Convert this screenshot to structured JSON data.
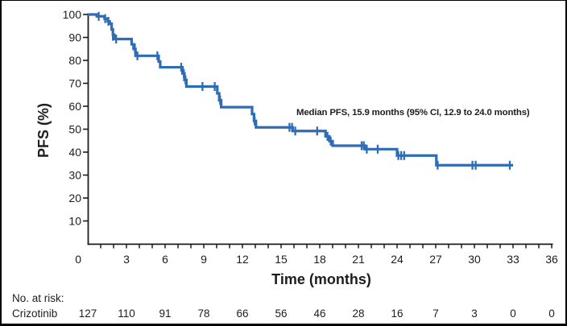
{
  "chart_data": {
    "type": "line",
    "chart_style": "kaplan-meier-step",
    "title": "",
    "annotation": "Median PFS, 15.9 months (95% CI, 12.9 to 24.0 months)",
    "xlabel": "Time (months)",
    "ylabel": "PFS (%)",
    "xlim": [
      0,
      36
    ],
    "ylim": [
      0,
      100
    ],
    "xticks": [
      0,
      3,
      6,
      9,
      12,
      15,
      18,
      21,
      24,
      27,
      30,
      33,
      36
    ],
    "xtick_minor_interval": 1,
    "yticks": [
      10,
      20,
      30,
      40,
      50,
      60,
      70,
      80,
      90,
      100
    ],
    "grid": false,
    "legend": false,
    "series": [
      {
        "name": "Crizotinib",
        "color": "#2e6cb5",
        "end_month": 33.0,
        "steps": [
          [
            0,
            100
          ],
          [
            0.7,
            99.2
          ],
          [
            1.3,
            98.2
          ],
          [
            1.55,
            97.0
          ],
          [
            1.7,
            96.0
          ],
          [
            1.85,
            93.5
          ],
          [
            1.95,
            91.2
          ],
          [
            2.05,
            89.3
          ],
          [
            3.4,
            87.0
          ],
          [
            3.55,
            85.0
          ],
          [
            3.7,
            82.0
          ],
          [
            5.5,
            79.5
          ],
          [
            5.62,
            77.0
          ],
          [
            7.35,
            74.3
          ],
          [
            7.5,
            71.5
          ],
          [
            7.65,
            68.6
          ],
          [
            10.05,
            65.6
          ],
          [
            10.2,
            62.6
          ],
          [
            10.35,
            59.6
          ],
          [
            12.75,
            56.6
          ],
          [
            12.9,
            53.6
          ],
          [
            13.05,
            50.8
          ],
          [
            15.9,
            49.2
          ],
          [
            18.45,
            46.9
          ],
          [
            18.75,
            44.8
          ],
          [
            19.0,
            42.8
          ],
          [
            21.5,
            41.3
          ],
          [
            24.0,
            38.5
          ],
          [
            27.05,
            34.3
          ]
        ],
        "censor_marks": [
          [
            0.85,
            99.2
          ],
          [
            1.35,
            98.2
          ],
          [
            1.6,
            97.0
          ],
          [
            1.95,
            90.5
          ],
          [
            2.2,
            89.3
          ],
          [
            3.65,
            85.5
          ],
          [
            3.85,
            82.0
          ],
          [
            5.4,
            82.0
          ],
          [
            7.25,
            77.0
          ],
          [
            7.45,
            74.3
          ],
          [
            7.58,
            71.5
          ],
          [
            8.9,
            68.6
          ],
          [
            9.85,
            68.6
          ],
          [
            10.27,
            62.6
          ],
          [
            12.95,
            53.6
          ],
          [
            15.65,
            50.8
          ],
          [
            15.85,
            50.8
          ],
          [
            16.1,
            49.2
          ],
          [
            17.8,
            49.2
          ],
          [
            18.6,
            46.9
          ],
          [
            18.85,
            44.8
          ],
          [
            21.25,
            42.8
          ],
          [
            21.42,
            42.8
          ],
          [
            21.65,
            41.3
          ],
          [
            22.5,
            41.3
          ],
          [
            24.1,
            38.5
          ],
          [
            24.32,
            38.5
          ],
          [
            24.55,
            38.5
          ],
          [
            27.15,
            34.3
          ],
          [
            29.85,
            34.3
          ],
          [
            30.1,
            34.3
          ],
          [
            32.75,
            34.3
          ]
        ]
      }
    ],
    "at_risk": {
      "heading": "No. at risk:",
      "times": [
        0,
        3,
        6,
        9,
        12,
        15,
        18,
        21,
        24,
        27,
        30,
        33,
        36
      ],
      "rows": [
        {
          "name": "Crizotinib",
          "values": [
            127,
            110,
            91,
            78,
            66,
            56,
            46,
            28,
            16,
            7,
            3,
            0,
            0
          ]
        }
      ]
    }
  },
  "colors": {
    "curve": "#2e6cb5",
    "axis": "#1d1d1f",
    "background": "#ffffff",
    "frame_border": "#000000"
  }
}
